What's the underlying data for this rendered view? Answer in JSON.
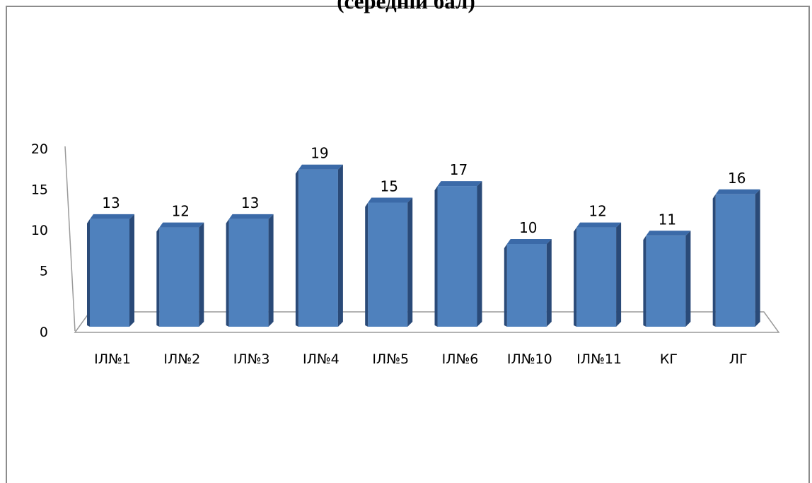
{
  "chart_data": {
    "type": "bar",
    "title": "(середній бал)",
    "categories": [
      "ІЛ№1",
      "ІЛ№2",
      "ІЛ№3",
      "ІЛ№4",
      "ІЛ№5",
      "ІЛ№6",
      "ІЛ№10",
      "ІЛ№11",
      "КГ",
      "ЛГ"
    ],
    "values": [
      13,
      12,
      13,
      19,
      15,
      17,
      10,
      12,
      11,
      16
    ],
    "ylim": [
      0,
      20
    ],
    "yticks": [
      0,
      5,
      10,
      15,
      20
    ],
    "bar_color": "#4f81bd",
    "bar_side_color": "#2a4a78",
    "bar_top_color": "#3b6aa8",
    "grid": false,
    "legend": "none",
    "data_labels": true
  }
}
